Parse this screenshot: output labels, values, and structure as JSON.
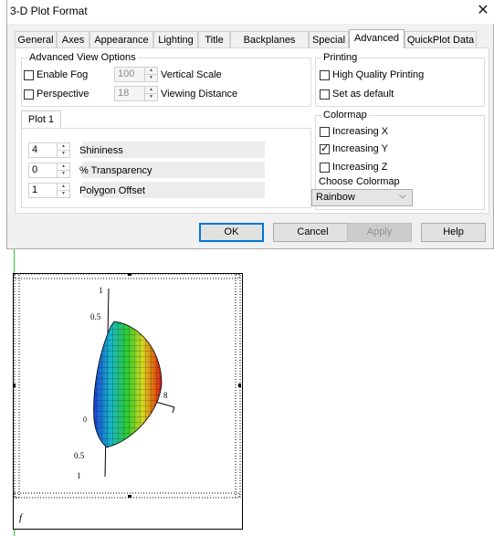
{
  "window": {
    "title": "3-D Plot Format",
    "close_glyph": "✕"
  },
  "tabs": [
    "General",
    "Axes",
    "Appearance",
    "Lighting",
    "Title",
    "Backplanes",
    "Special",
    "Advanced",
    "QuickPlot Data"
  ],
  "active_tab": "Advanced",
  "advanced_view": {
    "legend": "Advanced View Options",
    "enable_fog": {
      "label": "Enable Fog",
      "checked": false
    },
    "perspective": {
      "label": "Perspective",
      "checked": false
    },
    "vertical_scale": {
      "label": "Vertical Scale",
      "value": "100"
    },
    "viewing_distance": {
      "label": "Viewing Distance",
      "value": "18"
    }
  },
  "plot_tab": "Plot 1",
  "plot_fields": [
    {
      "label": "Shininess",
      "value": "4"
    },
    {
      "label": "% Transparency",
      "value": "0"
    },
    {
      "label": "Polygon Offset",
      "value": "1"
    }
  ],
  "printing": {
    "legend": "Printing",
    "high_quality": {
      "label": "High Quality Printing",
      "checked": false
    },
    "set_default": {
      "label": "Set as default",
      "checked": false
    }
  },
  "colormap": {
    "legend": "Colormap",
    "increasing_x": {
      "label": "Increasing X",
      "checked": false
    },
    "increasing_y": {
      "label": "Increasing Y",
      "checked": true
    },
    "increasing_z": {
      "label": "Increasing Z",
      "checked": false
    },
    "choose_label": "Choose Colormap",
    "selected": "Rainbow"
  },
  "buttons": {
    "ok": "OK",
    "cancel": "Cancel",
    "apply": "Apply",
    "help": "Help"
  },
  "plot": {
    "z_ticks": [
      "1",
      "0.5",
      "0.5",
      "1"
    ],
    "x_tick": "8",
    "origin_tick": "0",
    "variable": "f"
  }
}
